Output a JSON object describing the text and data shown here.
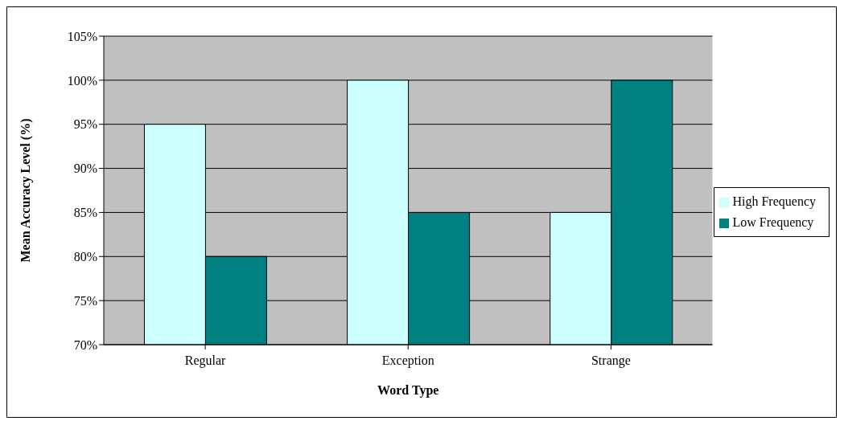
{
  "chart_data": {
    "type": "bar",
    "xlabel": "Word Type",
    "ylabel": "Mean Accuracy Level (%)",
    "categories": [
      "Regular",
      "Exception",
      "Strange"
    ],
    "series": [
      {
        "name": "High Frequency",
        "color": "#ccffff",
        "values": [
          95,
          100,
          85
        ]
      },
      {
        "name": "Low Frequency",
        "color": "#008080",
        "values": [
          80,
          85,
          100
        ]
      }
    ],
    "ylim": [
      70,
      105
    ],
    "yticks": [
      {
        "value": 70,
        "label": "70%"
      },
      {
        "value": 75,
        "label": "75%"
      },
      {
        "value": 80,
        "label": "80%"
      },
      {
        "value": 85,
        "label": "85%"
      },
      {
        "value": 90,
        "label": "90%"
      },
      {
        "value": 95,
        "label": "95%"
      },
      {
        "value": 100,
        "label": "100%"
      },
      {
        "value": 105,
        "label": "105%"
      }
    ],
    "grid": "y",
    "legend": "right"
  }
}
